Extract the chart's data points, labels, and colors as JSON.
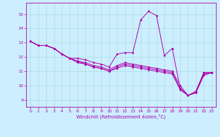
{
  "xlabel": "Windchill (Refroidissement éolien,°C)",
  "xlim": [
    -0.5,
    23.5
  ],
  "ylim": [
    8.5,
    15.8
  ],
  "yticks": [
    9,
    10,
    11,
    12,
    13,
    14,
    15
  ],
  "xticks": [
    0,
    1,
    2,
    3,
    4,
    5,
    6,
    7,
    8,
    9,
    10,
    11,
    12,
    13,
    14,
    15,
    16,
    17,
    18,
    19,
    20,
    21,
    22,
    23
  ],
  "bg_color": "#cceeff",
  "line_color": "#aa00aa",
  "grid_color": "#aadddd",
  "lines": [
    [
      13.1,
      12.8,
      12.8,
      12.6,
      12.2,
      11.9,
      11.9,
      11.8,
      11.6,
      11.5,
      11.3,
      12.2,
      12.3,
      12.3,
      14.6,
      15.2,
      14.9,
      12.1,
      12.6,
      9.8,
      9.3,
      9.6,
      10.9,
      10.9
    ],
    [
      13.1,
      12.8,
      12.8,
      12.6,
      12.2,
      11.9,
      11.7,
      11.6,
      11.4,
      11.3,
      11.1,
      11.4,
      11.6,
      11.5,
      11.4,
      11.3,
      11.2,
      11.1,
      11.0,
      10.0,
      9.3,
      9.5,
      10.9,
      10.9
    ],
    [
      13.1,
      12.8,
      12.8,
      12.6,
      12.2,
      11.9,
      11.7,
      11.5,
      11.3,
      11.2,
      11.0,
      11.3,
      11.5,
      11.4,
      11.3,
      11.2,
      11.1,
      11.0,
      10.9,
      9.8,
      9.3,
      9.5,
      10.8,
      10.9
    ],
    [
      13.1,
      12.8,
      12.8,
      12.6,
      12.2,
      11.9,
      11.6,
      11.5,
      11.3,
      11.2,
      11.0,
      11.2,
      11.4,
      11.3,
      11.2,
      11.1,
      11.0,
      10.9,
      10.8,
      9.7,
      9.3,
      9.5,
      10.7,
      10.9
    ]
  ]
}
